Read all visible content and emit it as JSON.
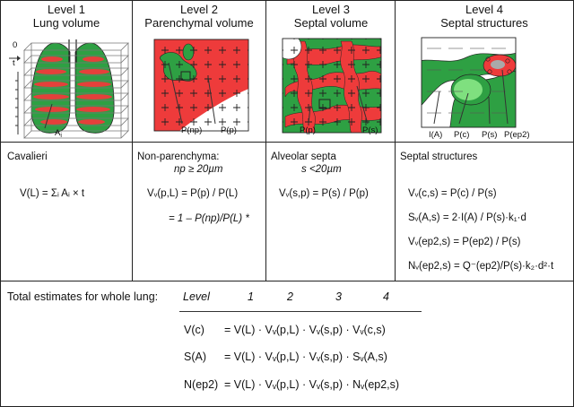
{
  "levels": [
    {
      "num": "Level 1",
      "name": "Lung volume"
    },
    {
      "num": "Level 2",
      "name": "Parenchymal volume"
    },
    {
      "num": "Level 3",
      "name": "Septal volume"
    },
    {
      "num": "Level 4",
      "name": "Septal structures"
    }
  ],
  "labels": {
    "axis_zero": "0",
    "axis_t": "t",
    "ai": "A",
    "ai_sub": "i",
    "p_np": "P(np)",
    "p_p2": "P(p)",
    "p_p3": "P(p)",
    "p_s3": "P(s)",
    "i_a": "I(A)",
    "p_c": "P(c)",
    "p_s4": "P(s)",
    "p_ep2": "P(ep2)"
  },
  "col1": {
    "title": "Cavalieri",
    "eq": "V(L) =  Σᵢ Aᵢ × t"
  },
  "col2": {
    "title": "Non-parenchyma:",
    "cond": "np ≥ 20µm",
    "eq1": "Vᵥ(p,L) = P(p) / P(L)",
    "eq2": "= 1 – P(np)/P(L)  *"
  },
  "col3": {
    "title": "Alveolar septa",
    "cond": "s <20µm",
    "eq": "Vᵥ(s,p) = P(s) / P(p)"
  },
  "col4": {
    "title": "Septal structures",
    "eqs": [
      "Vᵥ(c,s) = P(c) / P(s)",
      "Sᵥ(A,s) = 2·I(A) / P(s)·k₁·d",
      "Vᵥ(ep2,s) = P(ep2) / P(s)",
      "Nᵥ(ep2,s) = Q⁻(ep2)/P(s)·k₂·d²·t"
    ]
  },
  "totals": {
    "heading": "Total estimates for whole lung:",
    "level_label": "Level",
    "level_nums": [
      "1",
      "2",
      "3",
      "4"
    ],
    "rows": [
      {
        "lhs": "V(c)",
        "rhs": "=   V(L) · Vᵥ(p,L) · Vᵥ(s,p) · Vᵥ(c,s)"
      },
      {
        "lhs": "S(A)",
        "rhs": "=   V(L) · Vᵥ(p,L) · Vᵥ(s,p) · Sᵥ(A,s)"
      },
      {
        "lhs": "N(ep2)",
        "rhs": "=  V(L) · Vᵥ(p,L) · Vᵥ(s,p) · Nᵥ(ep2,s)"
      }
    ]
  },
  "colors": {
    "parenchyma_red": "#ee3b3b",
    "septa_green": "#2ea043",
    "light_green": "#7fe07f",
    "grey": "#aaaaaa"
  }
}
